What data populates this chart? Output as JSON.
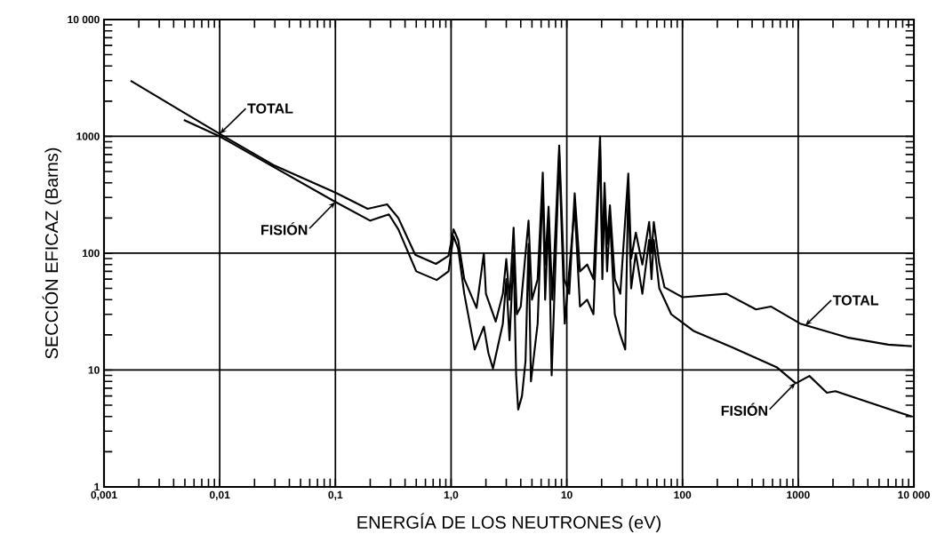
{
  "chart_data": {
    "type": "line",
    "xlabel": "ENERGÍA DE LOS NEUTRONES (eV)",
    "ylabel": "SECCIÓN EFICAZ  (Barns)",
    "log": "xy",
    "grid": true,
    "xlim": [
      0.001,
      10000
    ],
    "ylim": [
      1,
      10000
    ],
    "xticks": [
      {
        "value": 0.001,
        "label": "0,001"
      },
      {
        "value": 0.01,
        "label": "0,01"
      },
      {
        "value": 0.1,
        "label": "0,1"
      },
      {
        "value": 1,
        "label": "1,0"
      },
      10,
      100,
      1000,
      {
        "value": 10000,
        "label": "10 000"
      }
    ],
    "yticks": [
      1,
      10,
      100,
      1000,
      {
        "value": 10000,
        "label": "10 000"
      }
    ],
    "series": [
      {
        "name": "TOTAL",
        "color": "#000000",
        "x": [
          0.0017,
          0.005,
          0.01,
          0.03,
          0.1,
          0.19,
          0.28,
          0.35,
          0.49,
          0.74,
          0.95,
          1.05,
          1.15,
          1.3,
          1.66,
          1.92,
          2.0,
          2.43,
          2.8,
          3.0,
          3.2,
          3.47,
          3.7,
          4.0,
          4.67,
          5.0,
          5.6,
          6.2,
          6.5,
          6.96,
          7.5,
          8.6,
          9.5,
          10.5,
          11.7,
          13,
          15,
          17,
          19.4,
          20.3,
          21.2,
          22.3,
          23.6,
          26,
          29,
          34,
          36,
          39.5,
          45,
          51.5,
          54,
          56.5,
          63,
          70,
          100,
          240,
          432,
          580,
          1040,
          2660,
          6000,
          9600
        ],
        "values": [
          2990,
          1580,
          1050,
          560,
          330,
          240,
          262,
          200,
          97,
          81,
          95,
          160,
          130,
          60,
          34,
          100,
          45,
          26,
          45,
          89,
          40,
          165,
          30,
          35,
          190,
          40,
          60,
          490,
          80,
          250,
          40,
          835,
          60,
          45,
          325,
          70,
          80,
          60,
          1000,
          90,
          400,
          120,
          257,
          60,
          45,
          480,
          90,
          150,
          80,
          185,
          100,
          185,
          81,
          51,
          42,
          45,
          33,
          35,
          25,
          19,
          16.5,
          16
        ]
      },
      {
        "name": "FISIÓN",
        "color": "#000000",
        "x": [
          0.0049,
          0.01,
          0.1,
          0.2,
          0.29,
          0.35,
          0.5,
          0.75,
          0.95,
          1.05,
          1.15,
          1.3,
          1.6,
          1.92,
          2.1,
          2.3,
          2.8,
          3.0,
          3.2,
          3.47,
          3.65,
          3.8,
          4.1,
          4.4,
          4.67,
          4.9,
          5.6,
          6.2,
          6.5,
          6.96,
          7.4,
          8.6,
          9.6,
          11.7,
          13,
          15,
          17,
          19.4,
          20.3,
          21.2,
          22.3,
          23.6,
          26,
          29,
          32,
          34,
          36,
          39.5,
          45,
          51.5,
          54,
          56.5,
          63,
          80,
          126,
          270,
          650,
          955,
          1250,
          1770,
          2100,
          9600
        ],
        "values": [
          1380,
          1000,
          275,
          190,
          215,
          160,
          70,
          59,
          70,
          140,
          110,
          45,
          15,
          23.5,
          14,
          10.3,
          25,
          60,
          18,
          100,
          9,
          4.6,
          6,
          12,
          120,
          8,
          25,
          400,
          40,
          200,
          9,
          700,
          25,
          250,
          35,
          40,
          30,
          800,
          60,
          300,
          70,
          200,
          30,
          20,
          15,
          380,
          50,
          100,
          45,
          130,
          60,
          130,
          50,
          30,
          21.5,
          15.6,
          10.6,
          7.7,
          8.9,
          6.4,
          6.6,
          4.0
        ]
      }
    ],
    "annotations": [
      {
        "text": "TOTAL",
        "x": 1150,
        "y": 24
      },
      {
        "text": "FISIÓN",
        "x": 950,
        "y": 7.8
      }
    ]
  }
}
